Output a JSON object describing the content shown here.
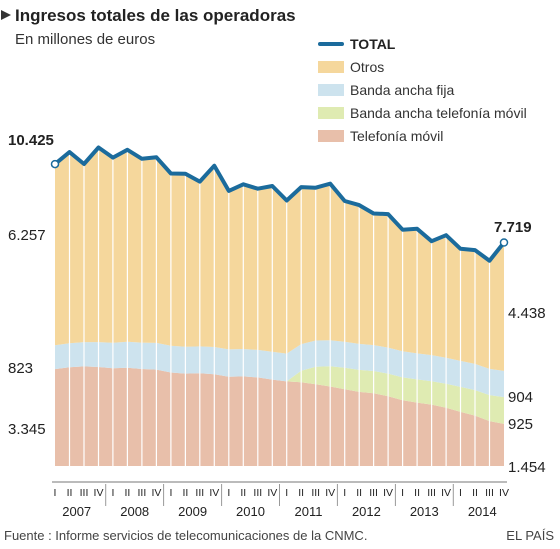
{
  "header": {
    "title": "Ingresos totales de las operadoras",
    "subtitle": "En millones de euros"
  },
  "footer": {
    "source": "Fuente : Informe servicios de telecomunicaciones de la CNMC.",
    "brand": "EL PAÍS"
  },
  "legend": {
    "total": "TOTAL",
    "otros": "Otros",
    "fija": "Banda ancha fija",
    "movil_bb": "Banda ancha telefonía móvil",
    "telefonia": "Telefonía móvil"
  },
  "colors": {
    "total": "#1b6b9c",
    "otros": "#f5d79c",
    "fija": "#cde3ee",
    "movil_bb": "#dfebb2",
    "telefonia": "#e8bfaa",
    "separator": "#ffffff"
  },
  "chart_data": {
    "type": "area",
    "title": "Ingresos totales de las operadoras",
    "subtitle": "En millones de euros",
    "stacking": "stacked bottom-to-top: Telefonía móvil, Banda ancha telefonía móvil, Banda ancha fija, Otros",
    "quarters": [
      "I",
      "II",
      "III",
      "IV",
      "I",
      "II",
      "III",
      "IV",
      "I",
      "II",
      "III",
      "IV",
      "I",
      "II",
      "III",
      "IV",
      "I",
      "II",
      "III",
      "IV",
      "I",
      "II",
      "III",
      "IV",
      "I",
      "II",
      "III",
      "IV",
      "I",
      "II",
      "III",
      "IV"
    ],
    "years": [
      "2007",
      "2008",
      "2009",
      "2010",
      "2011",
      "2012",
      "2013",
      "2014"
    ],
    "ylim": [
      0,
      11500
    ],
    "series": [
      {
        "name": "Telefonía móvil",
        "key": "telefonia",
        "values": [
          3345,
          3410,
          3440,
          3420,
          3375,
          3390,
          3350,
          3330,
          3230,
          3190,
          3200,
          3170,
          3085,
          3095,
          3060,
          2985,
          2920,
          2890,
          2825,
          2745,
          2650,
          2560,
          2510,
          2410,
          2270,
          2190,
          2120,
          2010,
          1870,
          1740,
          1550,
          1454
        ]
      },
      {
        "name": "Banda ancha telefonía móvil",
        "key": "movil_bb",
        "values": [
          0,
          0,
          0,
          0,
          0,
          0,
          0,
          0,
          0,
          0,
          0,
          0,
          0,
          0,
          0,
          0,
          0,
          400,
          600,
          700,
          740,
          760,
          770,
          780,
          790,
          800,
          810,
          830,
          860,
          880,
          900,
          925
        ]
      },
      {
        "name": "Banda ancha fija",
        "key": "fija",
        "values": [
          823,
          830,
          840,
          860,
          880,
          900,
          910,
          920,
          920,
          930,
          930,
          940,
          940,
          945,
          950,
          960,
          960,
          920,
          910,
          900,
          900,
          895,
          895,
          900,
          900,
          900,
          900,
          900,
          900,
          905,
          905,
          904
        ]
      },
      {
        "name": "Otros",
        "key": "otros",
        "values": [
          6257,
          6600,
          6150,
          6720,
          6395,
          6630,
          6350,
          6410,
          5950,
          5975,
          5690,
          6260,
          5475,
          5690,
          5565,
          5725,
          5290,
          5420,
          5275,
          5405,
          4860,
          4795,
          4545,
          4610,
          4200,
          4300,
          3935,
          4230,
          3870,
          3930,
          3735,
          4438
        ]
      },
      {
        "name": "TOTAL",
        "key": "total",
        "values": [
          10425,
          10840,
          10430,
          11000,
          10650,
          10920,
          10610,
          10660,
          10100,
          10095,
          9820,
          10370,
          9500,
          9730,
          9575,
          9670,
          9170,
          9630,
          9610,
          9750,
          9150,
          9010,
          8720,
          8700,
          8160,
          8190,
          7765,
          7970,
          7500,
          7455,
          7090,
          7719
        ]
      }
    ],
    "annotations": {
      "total_start": "10.425",
      "total_end": "7.719",
      "otros_start": "6.257",
      "otros_end": "4.438",
      "fija_start": "823",
      "fija_end": "904",
      "movil_bb_end": "925",
      "telefonia_start": "3.345",
      "telefonia_end": "1.454"
    }
  }
}
